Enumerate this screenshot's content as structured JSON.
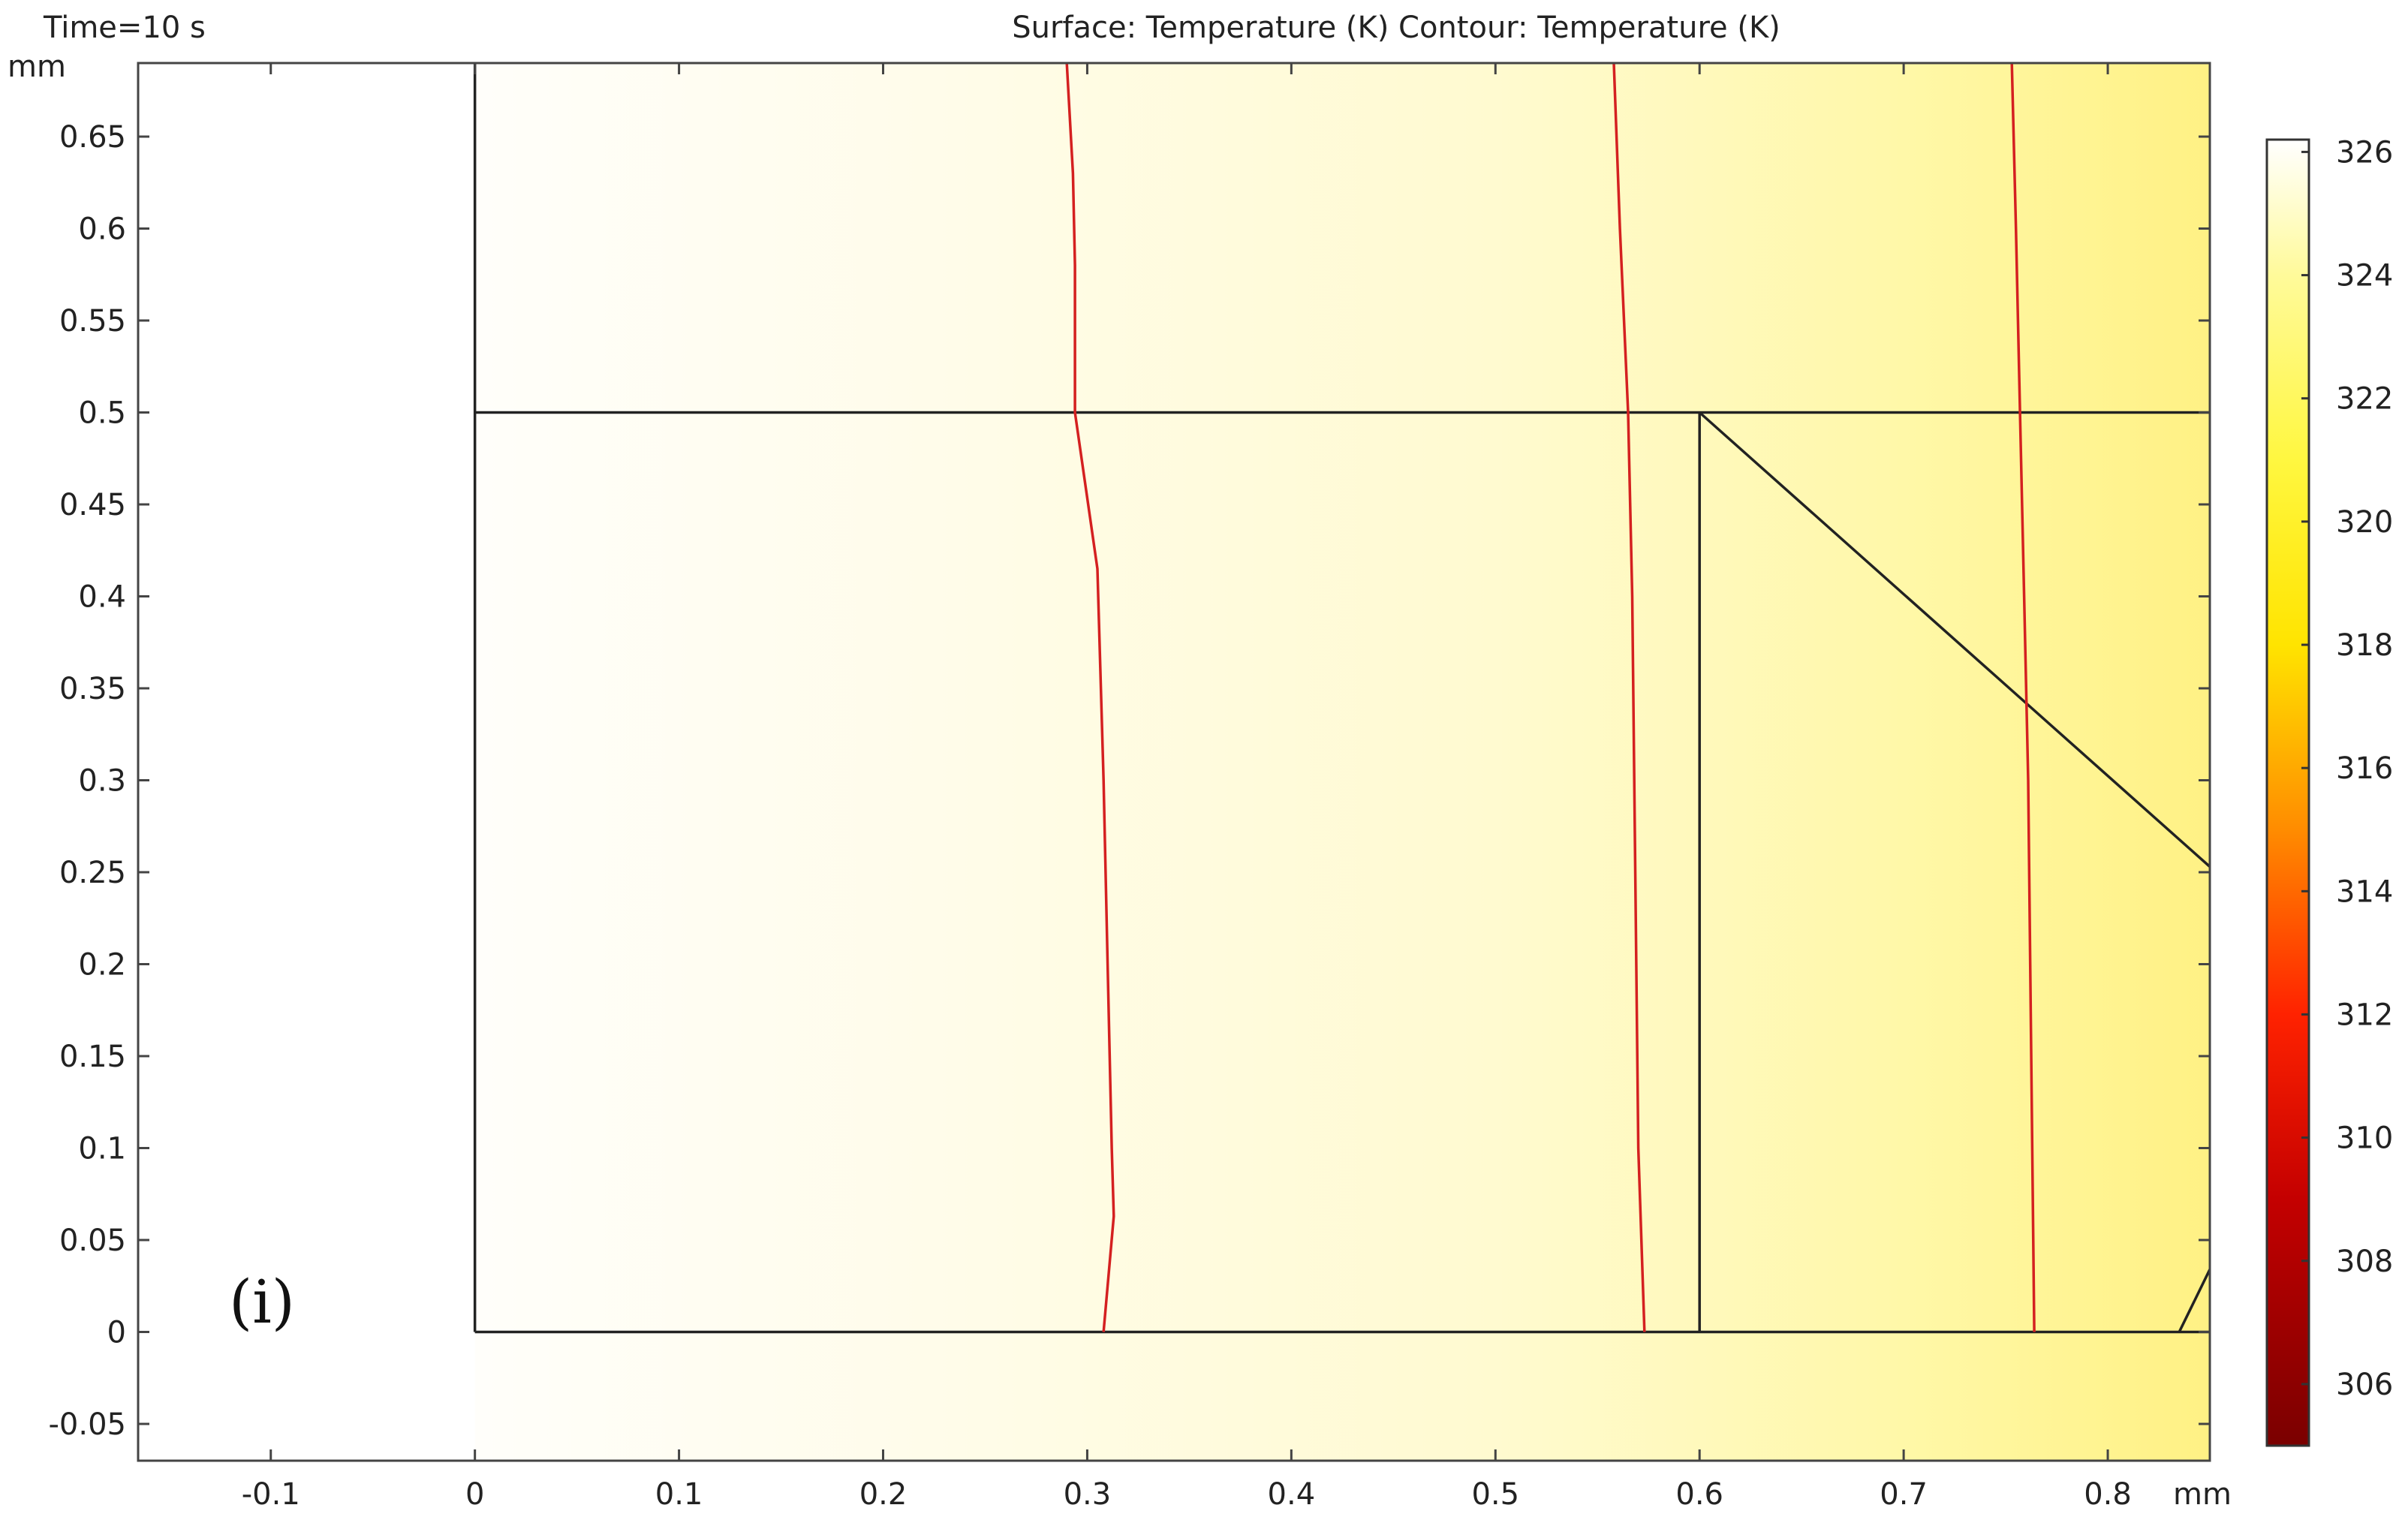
{
  "header": {
    "time_label": "Time=10 s",
    "plot_title": "Surface: Temperature (K)   Contour: Temperature (K)"
  },
  "panel_label": "(i)",
  "chart_data": {
    "type": "heatmap",
    "title": "Surface: Temperature (K)   Contour: Temperature (K)",
    "subtitle": "Time=10 s",
    "x_unit": "mm",
    "y_unit": "mm",
    "xlim": [
      -0.165,
      0.85
    ],
    "ylim": [
      -0.07,
      0.69
    ],
    "x_ticks": [
      -0.1,
      0,
      0.1,
      0.2,
      0.3,
      0.4,
      0.5,
      0.6,
      0.7,
      0.8
    ],
    "x_tick_labels": [
      "-0.1",
      "0",
      "0.1",
      "0.2",
      "0.3",
      "0.4",
      "0.5",
      "0.6",
      "0.7",
      "0.8"
    ],
    "y_ticks": [
      -0.05,
      0,
      0.05,
      0.1,
      0.15,
      0.2,
      0.25,
      0.3,
      0.35,
      0.4,
      0.45,
      0.5,
      0.55,
      0.6,
      0.65
    ],
    "y_tick_labels": [
      "-0.05",
      "0",
      "0.05",
      "0.1",
      "0.15",
      "0.2",
      "0.25",
      "0.3",
      "0.35",
      "0.4",
      "0.45",
      "0.5",
      "0.55",
      "0.6",
      "0.65"
    ],
    "surface": {
      "quantity": "Temperature",
      "unit": "K",
      "gradient_x": [
        0,
        0.25,
        0.5,
        0.7,
        0.85
      ],
      "gradient_colors": [
        "#fffefa",
        "#fffce8",
        "#fffad0",
        "#fff8a8",
        "#fff184"
      ]
    },
    "colorbar": {
      "range": [
        305,
        326.2
      ],
      "ticks": [
        306,
        308,
        310,
        312,
        314,
        316,
        318,
        320,
        322,
        324,
        326
      ],
      "tick_labels": [
        "306",
        "308",
        "310",
        "312",
        "314",
        "316",
        "318",
        "320",
        "322",
        "324",
        "326"
      ],
      "stops": [
        {
          "value": 305,
          "color": "#7a0000"
        },
        {
          "value": 309,
          "color": "#c40000"
        },
        {
          "value": 312,
          "color": "#ff2200"
        },
        {
          "value": 315,
          "color": "#ff8c00"
        },
        {
          "value": 318,
          "color": "#ffe400"
        },
        {
          "value": 321,
          "color": "#fff740"
        },
        {
          "value": 324,
          "color": "#fffa9a"
        },
        {
          "value": 326.2,
          "color": "#ffffff"
        }
      ]
    },
    "contour_color": "#d42020",
    "contours": [
      {
        "points": [
          [
            0.29,
            0.69
          ],
          [
            0.293,
            0.63
          ],
          [
            0.294,
            0.58
          ],
          [
            0.294,
            0.53
          ],
          [
            0.294,
            0.5
          ],
          [
            0.305,
            0.415
          ],
          [
            0.308,
            0.3
          ],
          [
            0.31,
            0.2
          ],
          [
            0.312,
            0.1
          ],
          [
            0.313,
            0.063
          ],
          [
            0.308,
            0
          ]
        ]
      },
      {
        "points": [
          [
            0.558,
            0.69
          ],
          [
            0.561,
            0.6
          ],
          [
            0.565,
            0.5
          ],
          [
            0.567,
            0.4
          ],
          [
            0.568,
            0.3
          ],
          [
            0.569,
            0.2
          ],
          [
            0.57,
            0.1
          ],
          [
            0.573,
            0
          ]
        ]
      },
      {
        "points": [
          [
            0.753,
            0.69
          ],
          [
            0.755,
            0.6
          ],
          [
            0.757,
            0.5
          ],
          [
            0.759,
            0.4
          ],
          [
            0.761,
            0.3
          ],
          [
            0.762,
            0.2
          ],
          [
            0.763,
            0.1
          ],
          [
            0.764,
            0
          ]
        ]
      }
    ],
    "geometry_lines": [
      {
        "from": [
          0,
          0.69
        ],
        "to": [
          0,
          0
        ]
      },
      {
        "from": [
          0,
          0
        ],
        "to": [
          0.85,
          0
        ]
      },
      {
        "from": [
          0,
          0.5
        ],
        "to": [
          0.85,
          0.5
        ]
      },
      {
        "from": [
          0.6,
          0.5
        ],
        "to": [
          0.6,
          0
        ]
      },
      {
        "from": [
          0.6,
          0.5
        ],
        "to": [
          0.85,
          0.253
        ]
      },
      {
        "from": [
          0.835,
          0
        ],
        "to": [
          0.85,
          0.034
        ]
      }
    ]
  }
}
